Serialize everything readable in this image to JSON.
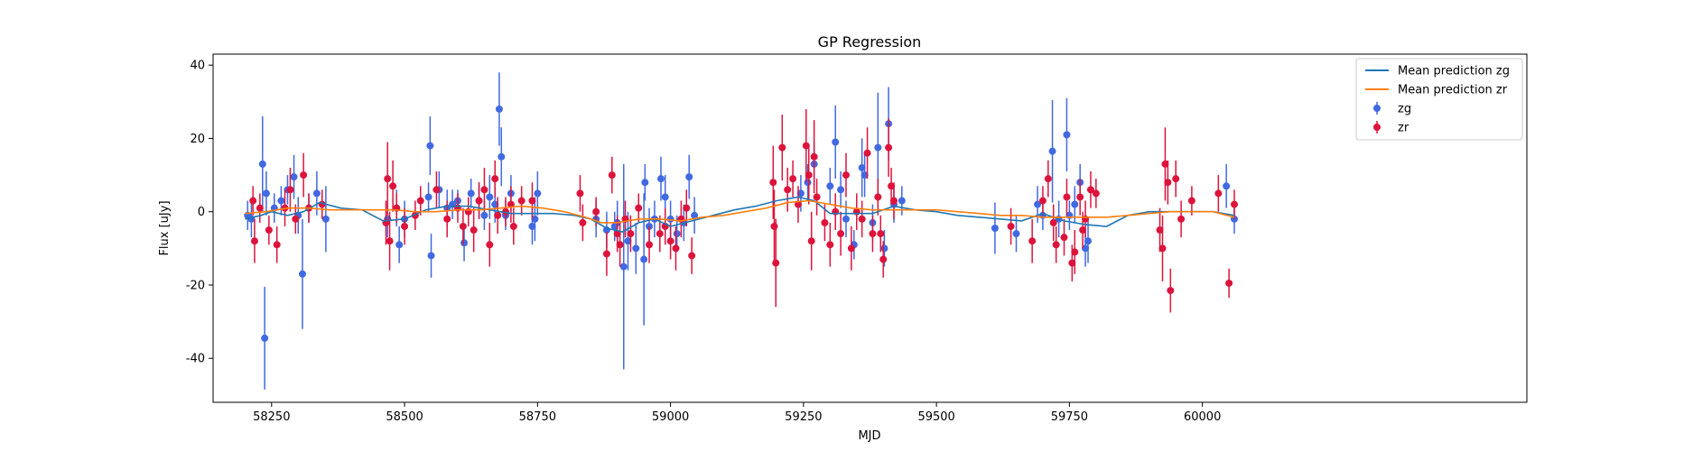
{
  "chart_data": {
    "type": "scatter",
    "title": "GP Regression",
    "xlabel": "MJD",
    "ylabel": "Flux [uJy]",
    "xlim": [
      58140,
      60610
    ],
    "ylim": [
      -52,
      43
    ],
    "xticks": [
      58250,
      58500,
      58750,
      59000,
      59250,
      59500,
      59750,
      60000
    ],
    "yticks": [
      -40,
      -20,
      0,
      20,
      40
    ],
    "grid": false,
    "legend_position": "top-right",
    "legend": [
      {
        "label": "Mean prediction zg",
        "kind": "line",
        "color": "#1f77b4"
      },
      {
        "label": "Mean prediction zr",
        "kind": "line",
        "color": "#ff7f0e"
      },
      {
        "label": "zg",
        "kind": "errorbar",
        "color": "#4169e1"
      },
      {
        "label": "zr",
        "kind": "errorbar",
        "color": "#dc143c"
      }
    ],
    "lines": [
      {
        "name": "Mean prediction zg",
        "color": "#1f77b4",
        "x": [
          58200,
          58230,
          58250,
          58280,
          58310,
          58340,
          58380,
          58420,
          58460,
          58500,
          58540,
          58580,
          58620,
          58660,
          58700,
          58740,
          58780,
          58820,
          58850,
          58880,
          58910,
          58940,
          58970,
          59000,
          59040,
          59080,
          59120,
          59160,
          59200,
          59240,
          59270,
          59300,
          59340,
          59380,
          59420,
          59460,
          59500,
          59540,
          59580,
          59620,
          59660,
          59700,
          59740,
          59780,
          59820,
          59860,
          59900,
          59940,
          59980,
          60020,
          60060
        ],
        "y": [
          -2,
          -1,
          0,
          -1,
          0,
          2.5,
          1,
          0.5,
          -2.5,
          -2,
          0.5,
          1.5,
          1.5,
          0.5,
          -0.5,
          -0.5,
          -0.5,
          -1,
          -2,
          -4.5,
          -5.5,
          -3,
          -2,
          -4,
          -2.5,
          -1,
          0.5,
          1.5,
          3,
          4,
          3,
          -0.5,
          -0.5,
          -0.5,
          1.5,
          0.5,
          0,
          -1,
          -1.5,
          -2,
          -2.5,
          -0.5,
          -2.5,
          -3.5,
          -4,
          -1,
          0,
          0,
          0,
          0,
          -1
        ]
      },
      {
        "name": "Mean prediction zr",
        "color": "#ff7f0e",
        "x": [
          58200,
          58240,
          58280,
          58320,
          58360,
          58400,
          58440,
          58480,
          58520,
          58560,
          58600,
          58640,
          58680,
          58720,
          58760,
          58800,
          58840,
          58870,
          58900,
          58940,
          58980,
          59020,
          59060,
          59100,
          59140,
          59180,
          59220,
          59260,
          59300,
          59340,
          59380,
          59420,
          59460,
          59500,
          59540,
          59580,
          59620,
          59660,
          59700,
          59740,
          59780,
          59820,
          59860,
          59900,
          59940,
          59980,
          60020,
          60060
        ],
        "y": [
          -0.5,
          0,
          1,
          1,
          0.5,
          0.5,
          0.5,
          0.5,
          0,
          0,
          0.5,
          0.5,
          1,
          1.5,
          1,
          0,
          -1.5,
          -3,
          -3,
          -2,
          -2,
          -2.5,
          -1.5,
          -1,
          0,
          1,
          2.5,
          3,
          2,
          1,
          0.5,
          0.5,
          0.5,
          0.5,
          0,
          -0.5,
          -1,
          -1,
          -1.5,
          -1.5,
          -1.5,
          -1.5,
          -1,
          -0.5,
          0,
          0,
          0,
          -1.5
        ]
      }
    ],
    "series": [
      {
        "name": "zg",
        "color": "#4169e1",
        "points": [
          [
            58205,
            -1,
            4
          ],
          [
            58212,
            -2,
            5
          ],
          [
            58233,
            13,
            13
          ],
          [
            58237,
            -34.5,
            14
          ],
          [
            58240,
            5,
            6
          ],
          [
            58255,
            1,
            4
          ],
          [
            58268,
            3,
            4
          ],
          [
            58280,
            6,
            4
          ],
          [
            58292,
            9.5,
            6
          ],
          [
            58300,
            -1,
            5
          ],
          [
            58308,
            -17,
            15
          ],
          [
            58320,
            1,
            4
          ],
          [
            58335,
            5,
            6
          ],
          [
            58352,
            -2,
            9
          ],
          [
            58468,
            -2,
            5
          ],
          [
            58485,
            1,
            5
          ],
          [
            58490,
            -9,
            5
          ],
          [
            58500,
            -2,
            5
          ],
          [
            58545,
            4,
            4
          ],
          [
            58548,
            18,
            8
          ],
          [
            58550,
            -12,
            6
          ],
          [
            58565,
            6,
            5
          ],
          [
            58580,
            1,
            5
          ],
          [
            58590,
            2,
            4
          ],
          [
            58600,
            3,
            3
          ],
          [
            58612,
            -8.5,
            5
          ],
          [
            58625,
            5,
            4
          ],
          [
            58640,
            3,
            5
          ],
          [
            58650,
            -1,
            4
          ],
          [
            58660,
            4,
            6
          ],
          [
            58670,
            2,
            5
          ],
          [
            58678,
            28,
            10
          ],
          [
            58682,
            15,
            8
          ],
          [
            58690,
            -1,
            4
          ],
          [
            58700,
            5,
            5
          ],
          [
            58740,
            -4,
            5
          ],
          [
            58745,
            -2,
            6
          ],
          [
            58750,
            5,
            6
          ],
          [
            58860,
            -2,
            5
          ],
          [
            58880,
            -5,
            5
          ],
          [
            58895,
            -4,
            4
          ],
          [
            58900,
            -3,
            6
          ],
          [
            58912,
            -15,
            28
          ],
          [
            58920,
            -8,
            8
          ],
          [
            58935,
            -10,
            7
          ],
          [
            58950,
            -13,
            18
          ],
          [
            58952,
            8,
            5
          ],
          [
            58960,
            -4,
            5
          ],
          [
            58970,
            -2,
            5
          ],
          [
            58982,
            9,
            6
          ],
          [
            58990,
            4,
            6
          ],
          [
            59000,
            -2,
            5
          ],
          [
            59012,
            -6,
            5
          ],
          [
            59025,
            -3,
            5
          ],
          [
            59035,
            9.5,
            6
          ],
          [
            59045,
            -1,
            5
          ],
          [
            59245,
            5,
            5
          ],
          [
            59258,
            8,
            5
          ],
          [
            59270,
            13,
            6
          ],
          [
            59300,
            7,
            5
          ],
          [
            59310,
            19,
            10
          ],
          [
            59320,
            6,
            5
          ],
          [
            59330,
            -2,
            5
          ],
          [
            59345,
            -9,
            4
          ],
          [
            59360,
            12,
            8
          ],
          [
            59365,
            10,
            6
          ],
          [
            59380,
            -3,
            5
          ],
          [
            59390,
            17.5,
            15
          ],
          [
            59402,
            -10,
            5
          ],
          [
            59410,
            24,
            10
          ],
          [
            59420,
            2,
            5
          ],
          [
            59435,
            3,
            4
          ],
          [
            59610,
            -4.5,
            7
          ],
          [
            59650,
            -6,
            5
          ],
          [
            59690,
            2,
            5
          ],
          [
            59700,
            -1,
            4
          ],
          [
            59718,
            16.5,
            14
          ],
          [
            59730,
            -2,
            5
          ],
          [
            59745,
            21,
            10
          ],
          [
            59750,
            -1,
            4
          ],
          [
            59760,
            2,
            5
          ],
          [
            59770,
            8,
            5
          ],
          [
            59780,
            -10,
            5
          ],
          [
            59785,
            -8,
            6
          ],
          [
            60045,
            7,
            6
          ],
          [
            60060,
            -2,
            4
          ]
        ]
      },
      {
        "name": "zr",
        "color": "#dc143c",
        "points": [
          [
            58215,
            3,
            4
          ],
          [
            58218,
            -8,
            6
          ],
          [
            58228,
            1,
            4
          ],
          [
            58245,
            -5,
            4
          ],
          [
            58260,
            -9,
            5
          ],
          [
            58275,
            1,
            5
          ],
          [
            58285,
            6,
            6
          ],
          [
            58295,
            -2,
            4
          ],
          [
            58310,
            10,
            6
          ],
          [
            58320,
            1,
            4
          ],
          [
            58345,
            2,
            4
          ],
          [
            58465,
            -3,
            6
          ],
          [
            58468,
            9,
            10
          ],
          [
            58472,
            -8,
            8
          ],
          [
            58478,
            7,
            7
          ],
          [
            58485,
            1,
            4
          ],
          [
            58500,
            -4,
            5
          ],
          [
            58520,
            -1,
            4
          ],
          [
            58530,
            3,
            4
          ],
          [
            58560,
            6,
            5
          ],
          [
            58580,
            -2,
            5
          ],
          [
            58600,
            1,
            4
          ],
          [
            58610,
            -4,
            5
          ],
          [
            58620,
            0,
            4
          ],
          [
            58630,
            -5,
            6
          ],
          [
            58640,
            3,
            5
          ],
          [
            58650,
            6,
            6
          ],
          [
            58660,
            -9,
            6
          ],
          [
            58670,
            9,
            5
          ],
          [
            58675,
            -1,
            5
          ],
          [
            58690,
            0,
            4
          ],
          [
            58700,
            2,
            5
          ],
          [
            58705,
            -4,
            5
          ],
          [
            58720,
            3,
            4
          ],
          [
            58740,
            3,
            5
          ],
          [
            58830,
            5,
            5
          ],
          [
            58835,
            -3,
            5
          ],
          [
            58860,
            0,
            4
          ],
          [
            58880,
            -11.5,
            6
          ],
          [
            58890,
            10,
            5
          ],
          [
            58900,
            -6,
            5
          ],
          [
            58905,
            -9,
            6
          ],
          [
            58915,
            -2,
            5
          ],
          [
            58925,
            -6,
            5
          ],
          [
            58940,
            1,
            4
          ],
          [
            58960,
            -9,
            5
          ],
          [
            58980,
            -6,
            5
          ],
          [
            58990,
            -4,
            5
          ],
          [
            59000,
            -8,
            5
          ],
          [
            59010,
            -10,
            6
          ],
          [
            59020,
            -2,
            5
          ],
          [
            59030,
            1,
            5
          ],
          [
            59040,
            -12,
            5
          ],
          [
            59193,
            8,
            10
          ],
          [
            59195,
            -4,
            10
          ],
          [
            59198,
            -14,
            12
          ],
          [
            59210,
            17.5,
            9
          ],
          [
            59220,
            6,
            6
          ],
          [
            59230,
            9,
            5
          ],
          [
            59240,
            2,
            5
          ],
          [
            59255,
            18,
            10
          ],
          [
            59260,
            10,
            8
          ],
          [
            59265,
            -8,
            8
          ],
          [
            59270,
            15,
            10
          ],
          [
            59275,
            4,
            5
          ],
          [
            59290,
            -3,
            5
          ],
          [
            59300,
            -9,
            6
          ],
          [
            59310,
            0,
            5
          ],
          [
            59320,
            -6,
            6
          ],
          [
            59330,
            10,
            6
          ],
          [
            59340,
            -10,
            6
          ],
          [
            59350,
            0,
            5
          ],
          [
            59360,
            -2,
            5
          ],
          [
            59370,
            16,
            7
          ],
          [
            59380,
            -6,
            5
          ],
          [
            59390,
            4,
            5
          ],
          [
            59395,
            -6,
            5
          ],
          [
            59400,
            -13,
            5
          ],
          [
            59410,
            17.5,
            8
          ],
          [
            59415,
            7,
            5
          ],
          [
            59420,
            3,
            5
          ],
          [
            59640,
            -4,
            5
          ],
          [
            59680,
            -8,
            6
          ],
          [
            59700,
            3,
            4
          ],
          [
            59710,
            9,
            5
          ],
          [
            59720,
            -3,
            5
          ],
          [
            59725,
            -9,
            5
          ],
          [
            59740,
            -7,
            5
          ],
          [
            59745,
            4,
            5
          ],
          [
            59755,
            -14,
            5
          ],
          [
            59760,
            -11,
            6
          ],
          [
            59770,
            4,
            5
          ],
          [
            59775,
            -5,
            5
          ],
          [
            59780,
            -2,
            5
          ],
          [
            59790,
            6,
            5
          ],
          [
            59800,
            5,
            4
          ],
          [
            59920,
            -5,
            6
          ],
          [
            59925,
            -10,
            9
          ],
          [
            59930,
            13,
            10
          ],
          [
            59935,
            8,
            6
          ],
          [
            59940,
            -21.5,
            6
          ],
          [
            59950,
            9,
            5
          ],
          [
            59960,
            -2,
            5
          ],
          [
            59980,
            3,
            4
          ],
          [
            60030,
            5,
            5
          ],
          [
            60050,
            -19.5,
            4
          ],
          [
            60060,
            2,
            4
          ]
        ]
      }
    ]
  }
}
